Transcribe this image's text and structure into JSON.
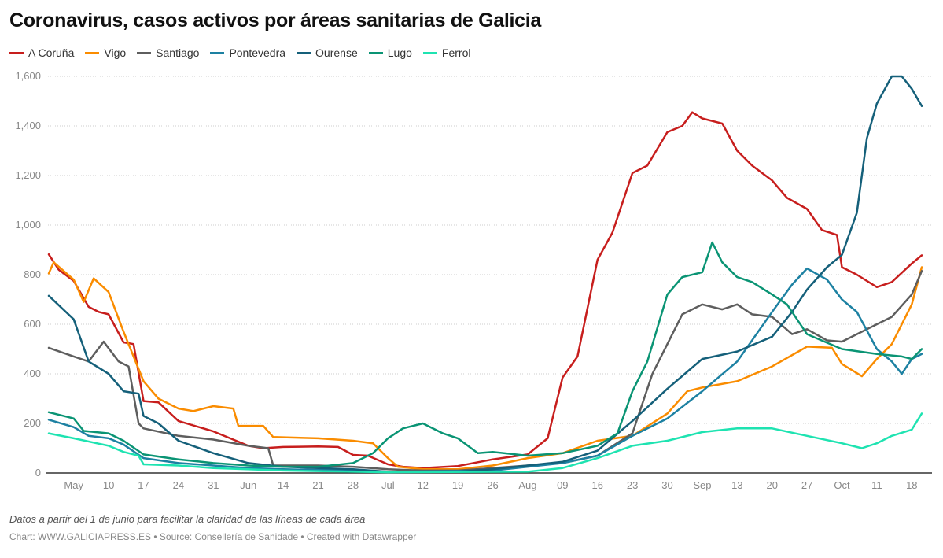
{
  "title": "Coronavirus, casos activos por áreas sanitarias de Galicia",
  "note": "Datos a partir del 1 de junio para facilitar la claridad de las líneas de cada área",
  "source": "Chart: WWW.GALICIAPRESS.ES • Source: Consellería de Sanidade • Created with Datawrapper",
  "chart_data": {
    "type": "line",
    "title": "Coronavirus, casos activos por áreas sanitarias de Galicia",
    "xlabel": "",
    "ylabel": "",
    "year": 2020,
    "xlim": [
      "04-28",
      "10-20"
    ],
    "ylim": [
      0,
      1600
    ],
    "grid": true,
    "legend": "top-left",
    "yticks": [
      0,
      200,
      400,
      600,
      800,
      1000,
      1200,
      1400,
      1600
    ],
    "ytick_labels": [
      "0",
      "200",
      "400",
      "600",
      "800",
      "1,000",
      "1,200",
      "1,400",
      "1,600"
    ],
    "xticks": [
      {
        "date": "05-03",
        "label": "May"
      },
      {
        "date": "05-10",
        "label": "10"
      },
      {
        "date": "05-17",
        "label": "17"
      },
      {
        "date": "05-24",
        "label": "24"
      },
      {
        "date": "05-31",
        "label": "31"
      },
      {
        "date": "06-07",
        "label": "Jun"
      },
      {
        "date": "06-14",
        "label": "14"
      },
      {
        "date": "06-21",
        "label": "21"
      },
      {
        "date": "06-28",
        "label": "28"
      },
      {
        "date": "07-05",
        "label": "Jul"
      },
      {
        "date": "07-12",
        "label": "12"
      },
      {
        "date": "07-19",
        "label": "19"
      },
      {
        "date": "07-26",
        "label": "26"
      },
      {
        "date": "08-02",
        "label": "Aug"
      },
      {
        "date": "08-09",
        "label": "09"
      },
      {
        "date": "08-16",
        "label": "16"
      },
      {
        "date": "08-23",
        "label": "23"
      },
      {
        "date": "08-30",
        "label": "30"
      },
      {
        "date": "09-06",
        "label": "Sep"
      },
      {
        "date": "09-13",
        "label": "13"
      },
      {
        "date": "09-20",
        "label": "20"
      },
      {
        "date": "09-27",
        "label": "27"
      },
      {
        "date": "10-04",
        "label": "Oct"
      },
      {
        "date": "10-11",
        "label": "11"
      },
      {
        "date": "10-18",
        "label": "18"
      }
    ],
    "series": [
      {
        "name": "A Coruña",
        "color": "#c71e1d",
        "points": [
          [
            "04-28",
            882
          ],
          [
            "04-30",
            820
          ],
          [
            "05-03",
            775
          ],
          [
            "05-06",
            670
          ],
          [
            "05-08",
            650
          ],
          [
            "05-10",
            640
          ],
          [
            "05-13",
            527
          ],
          [
            "05-15",
            520
          ],
          [
            "05-17",
            290
          ],
          [
            "05-20",
            285
          ],
          [
            "05-24",
            210
          ],
          [
            "05-31",
            168
          ],
          [
            "06-07",
            110
          ],
          [
            "06-10",
            100
          ],
          [
            "06-14",
            105
          ],
          [
            "06-21",
            107
          ],
          [
            "06-25",
            105
          ],
          [
            "06-28",
            73
          ],
          [
            "07-01",
            70
          ],
          [
            "07-05",
            35
          ],
          [
            "07-08",
            25
          ],
          [
            "07-12",
            20
          ],
          [
            "07-19",
            28
          ],
          [
            "07-26",
            55
          ],
          [
            "08-02",
            75
          ],
          [
            "08-06",
            140
          ],
          [
            "08-09",
            385
          ],
          [
            "08-12",
            470
          ],
          [
            "08-16",
            860
          ],
          [
            "08-19",
            970
          ],
          [
            "08-23",
            1210
          ],
          [
            "08-26",
            1240
          ],
          [
            "08-30",
            1375
          ],
          [
            "09-02",
            1400
          ],
          [
            "09-04",
            1455
          ],
          [
            "09-06",
            1430
          ],
          [
            "09-10",
            1410
          ],
          [
            "09-13",
            1300
          ],
          [
            "09-16",
            1240
          ],
          [
            "09-20",
            1180
          ],
          [
            "09-23",
            1110
          ],
          [
            "09-27",
            1065
          ],
          [
            "09-30",
            980
          ],
          [
            "10-03",
            960
          ],
          [
            "10-04",
            830
          ],
          [
            "10-07",
            800
          ],
          [
            "10-11",
            750
          ],
          [
            "10-14",
            770
          ],
          [
            "10-18",
            845
          ],
          [
            "10-20",
            878
          ]
        ]
      },
      {
        "name": "Vigo",
        "color": "#fa8c00",
        "points": [
          [
            "04-28",
            805
          ],
          [
            "04-29",
            850
          ],
          [
            "05-03",
            780
          ],
          [
            "05-05",
            690
          ],
          [
            "05-07",
            785
          ],
          [
            "05-10",
            730
          ],
          [
            "05-13",
            570
          ],
          [
            "05-17",
            370
          ],
          [
            "05-20",
            300
          ],
          [
            "05-24",
            260
          ],
          [
            "05-27",
            250
          ],
          [
            "05-31",
            270
          ],
          [
            "06-04",
            260
          ],
          [
            "06-05",
            190
          ],
          [
            "06-10",
            190
          ],
          [
            "06-12",
            145
          ],
          [
            "06-21",
            140
          ],
          [
            "06-28",
            130
          ],
          [
            "07-02",
            120
          ],
          [
            "07-05",
            60
          ],
          [
            "07-07",
            25
          ],
          [
            "07-12",
            15
          ],
          [
            "07-19",
            15
          ],
          [
            "07-26",
            30
          ],
          [
            "08-02",
            60
          ],
          [
            "08-09",
            80
          ],
          [
            "08-16",
            130
          ],
          [
            "08-23",
            150
          ],
          [
            "08-30",
            240
          ],
          [
            "09-03",
            330
          ],
          [
            "09-06",
            345
          ],
          [
            "09-13",
            370
          ],
          [
            "09-20",
            430
          ],
          [
            "09-27",
            510
          ],
          [
            "10-02",
            505
          ],
          [
            "10-04",
            440
          ],
          [
            "10-08",
            390
          ],
          [
            "10-11",
            460
          ],
          [
            "10-14",
            520
          ],
          [
            "10-18",
            680
          ],
          [
            "10-20",
            830
          ]
        ]
      },
      {
        "name": "Santiago",
        "color": "#5e5e5e",
        "points": [
          [
            "04-28",
            505
          ],
          [
            "05-03",
            470
          ],
          [
            "05-06",
            450
          ],
          [
            "05-09",
            530
          ],
          [
            "05-12",
            450
          ],
          [
            "05-14",
            430
          ],
          [
            "05-16",
            200
          ],
          [
            "05-17",
            180
          ],
          [
            "05-24",
            150
          ],
          [
            "05-31",
            135
          ],
          [
            "06-07",
            110
          ],
          [
            "06-11",
            100
          ],
          [
            "06-12",
            30
          ],
          [
            "06-21",
            30
          ],
          [
            "06-28",
            25
          ],
          [
            "07-05",
            15
          ],
          [
            "07-12",
            10
          ],
          [
            "07-19",
            10
          ],
          [
            "07-26",
            20
          ],
          [
            "08-02",
            30
          ],
          [
            "08-09",
            40
          ],
          [
            "08-16",
            70
          ],
          [
            "08-23",
            160
          ],
          [
            "08-27",
            400
          ],
          [
            "08-30",
            520
          ],
          [
            "09-02",
            640
          ],
          [
            "09-06",
            680
          ],
          [
            "09-10",
            660
          ],
          [
            "09-13",
            680
          ],
          [
            "09-16",
            640
          ],
          [
            "09-20",
            630
          ],
          [
            "09-24",
            560
          ],
          [
            "09-27",
            580
          ],
          [
            "10-01",
            535
          ],
          [
            "10-04",
            530
          ],
          [
            "10-11",
            600
          ],
          [
            "10-14",
            630
          ],
          [
            "10-18",
            720
          ],
          [
            "10-20",
            815
          ]
        ]
      },
      {
        "name": "Pontevedra",
        "color": "#1d81a2",
        "points": [
          [
            "04-28",
            215
          ],
          [
            "05-03",
            185
          ],
          [
            "05-06",
            150
          ],
          [
            "05-10",
            140
          ],
          [
            "05-13",
            115
          ],
          [
            "05-17",
            60
          ],
          [
            "05-24",
            40
          ],
          [
            "05-31",
            30
          ],
          [
            "06-07",
            20
          ],
          [
            "06-14",
            15
          ],
          [
            "06-28",
            10
          ],
          [
            "07-05",
            5
          ],
          [
            "07-26",
            10
          ],
          [
            "08-09",
            40
          ],
          [
            "08-16",
            70
          ],
          [
            "08-23",
            150
          ],
          [
            "08-30",
            220
          ],
          [
            "09-06",
            330
          ],
          [
            "09-13",
            450
          ],
          [
            "09-20",
            650
          ],
          [
            "09-24",
            760
          ],
          [
            "09-27",
            825
          ],
          [
            "10-01",
            780
          ],
          [
            "10-04",
            700
          ],
          [
            "10-07",
            650
          ],
          [
            "10-11",
            500
          ],
          [
            "10-14",
            450
          ],
          [
            "10-16",
            400
          ],
          [
            "10-18",
            460
          ],
          [
            "10-20",
            480
          ]
        ]
      },
      {
        "name": "Ourense",
        "color": "#15607a",
        "points": [
          [
            "04-28",
            715
          ],
          [
            "05-03",
            620
          ],
          [
            "05-06",
            450
          ],
          [
            "05-10",
            400
          ],
          [
            "05-13",
            330
          ],
          [
            "05-16",
            320
          ],
          [
            "05-17",
            230
          ],
          [
            "05-20",
            200
          ],
          [
            "05-24",
            130
          ],
          [
            "05-31",
            80
          ],
          [
            "06-07",
            40
          ],
          [
            "06-14",
            25
          ],
          [
            "06-21",
            20
          ],
          [
            "06-28",
            15
          ],
          [
            "07-05",
            5
          ],
          [
            "07-19",
            5
          ],
          [
            "07-26",
            15
          ],
          [
            "08-02",
            30
          ],
          [
            "08-09",
            45
          ],
          [
            "08-16",
            90
          ],
          [
            "08-23",
            210
          ],
          [
            "08-30",
            340
          ],
          [
            "09-06",
            460
          ],
          [
            "09-13",
            490
          ],
          [
            "09-20",
            550
          ],
          [
            "09-24",
            650
          ],
          [
            "09-27",
            740
          ],
          [
            "10-01",
            830
          ],
          [
            "10-04",
            880
          ],
          [
            "10-07",
            1050
          ],
          [
            "10-09",
            1350
          ],
          [
            "10-11",
            1490
          ],
          [
            "10-14",
            1600
          ],
          [
            "10-16",
            1600
          ],
          [
            "10-18",
            1550
          ],
          [
            "10-20",
            1480
          ]
        ]
      },
      {
        "name": "Lugo",
        "color": "#0a9474",
        "points": [
          [
            "04-28",
            245
          ],
          [
            "05-03",
            220
          ],
          [
            "05-05",
            170
          ],
          [
            "05-10",
            160
          ],
          [
            "05-13",
            130
          ],
          [
            "05-17",
            75
          ],
          [
            "05-24",
            55
          ],
          [
            "05-31",
            40
          ],
          [
            "06-07",
            30
          ],
          [
            "06-14",
            25
          ],
          [
            "06-21",
            25
          ],
          [
            "06-28",
            40
          ],
          [
            "07-02",
            80
          ],
          [
            "07-05",
            140
          ],
          [
            "07-08",
            180
          ],
          [
            "07-12",
            200
          ],
          [
            "07-16",
            160
          ],
          [
            "07-19",
            140
          ],
          [
            "07-23",
            80
          ],
          [
            "07-26",
            85
          ],
          [
            "08-02",
            70
          ],
          [
            "08-09",
            80
          ],
          [
            "08-16",
            110
          ],
          [
            "08-20",
            160
          ],
          [
            "08-23",
            330
          ],
          [
            "08-26",
            450
          ],
          [
            "08-30",
            720
          ],
          [
            "09-02",
            790
          ],
          [
            "09-06",
            810
          ],
          [
            "09-08",
            930
          ],
          [
            "09-10",
            850
          ],
          [
            "09-13",
            790
          ],
          [
            "09-16",
            770
          ],
          [
            "09-20",
            720
          ],
          [
            "09-23",
            680
          ],
          [
            "09-27",
            560
          ],
          [
            "10-04",
            500
          ],
          [
            "10-11",
            480
          ],
          [
            "10-16",
            470
          ],
          [
            "10-18",
            460
          ],
          [
            "10-20",
            500
          ]
        ]
      },
      {
        "name": "Ferrol",
        "color": "#1ee3b1",
        "points": [
          [
            "04-28",
            160
          ],
          [
            "05-03",
            140
          ],
          [
            "05-10",
            110
          ],
          [
            "05-13",
            85
          ],
          [
            "05-16",
            70
          ],
          [
            "05-17",
            35
          ],
          [
            "05-24",
            30
          ],
          [
            "05-31",
            20
          ],
          [
            "06-14",
            10
          ],
          [
            "07-05",
            3
          ],
          [
            "08-02",
            5
          ],
          [
            "08-09",
            20
          ],
          [
            "08-16",
            60
          ],
          [
            "08-23",
            110
          ],
          [
            "08-30",
            130
          ],
          [
            "09-06",
            165
          ],
          [
            "09-13",
            180
          ],
          [
            "09-20",
            180
          ],
          [
            "09-27",
            150
          ],
          [
            "10-04",
            120
          ],
          [
            "10-08",
            100
          ],
          [
            "10-11",
            120
          ],
          [
            "10-14",
            150
          ],
          [
            "10-18",
            175
          ],
          [
            "10-20",
            240
          ]
        ]
      }
    ]
  }
}
